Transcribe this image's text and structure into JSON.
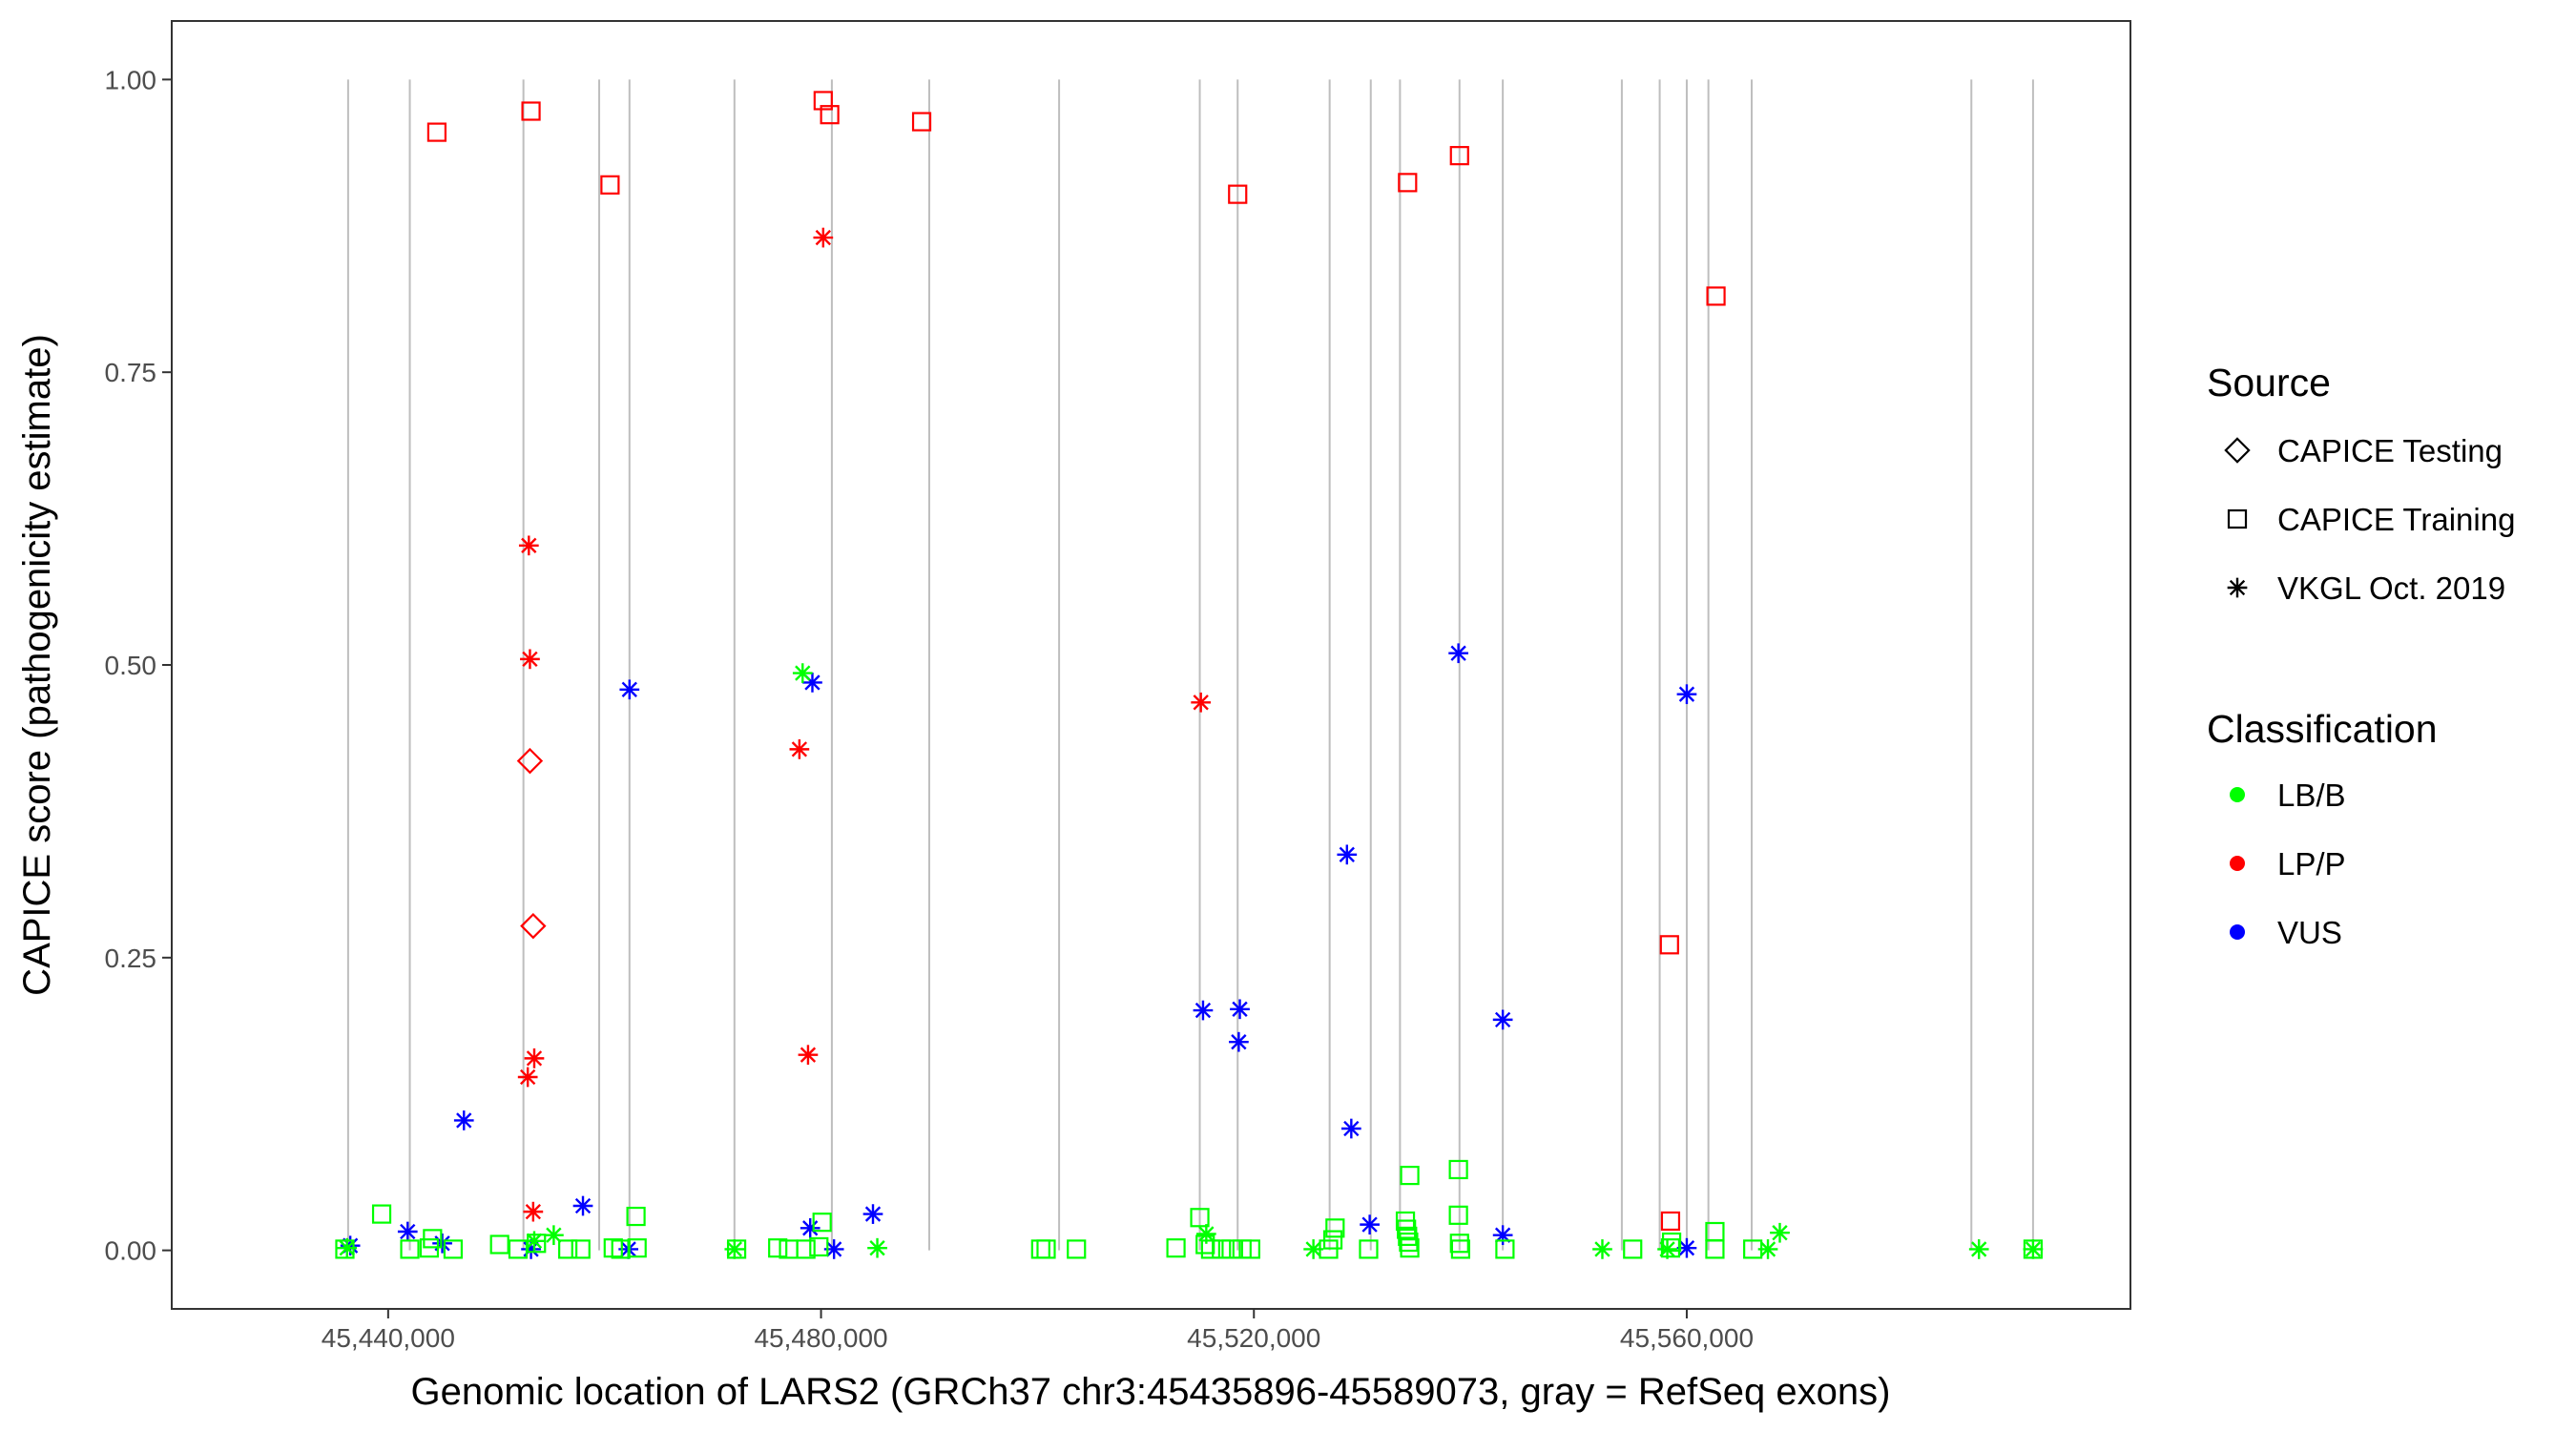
{
  "chart_data": {
    "type": "scatter",
    "xlabel": "Genomic location of LARS2 (GRCh37 chr3:45435896-45589073, gray = RefSeq exons)",
    "ylabel": "CAPICE score (pathogenicity estimate)",
    "xlim": [
      45420000,
      45601000
    ],
    "ylim": [
      -0.05,
      1.05
    ],
    "x_ticks": [
      45440000,
      45480000,
      45520000,
      45560000
    ],
    "x_tick_labels": [
      "45,440,000",
      "45,480,000",
      "45,520,000",
      "45,560,000"
    ],
    "y_ticks": [
      0,
      0.25,
      0.5,
      0.75,
      1
    ],
    "y_tick_labels": [
      "0.00",
      "0.25",
      "0.50",
      "0.75",
      "1.00"
    ],
    "grid": false,
    "legend_position": "right",
    "exons": [
      45436300,
      45442000,
      45452500,
      45459500,
      45462300,
      45472000,
      45481000,
      45490000,
      45502000,
      45515000,
      45518500,
      45527000,
      45530800,
      45533500,
      45539000,
      45543000,
      45554000,
      45557500,
      45560000,
      45562000,
      45566000,
      45586300,
      45592000
    ],
    "legend_source": {
      "title": "Source",
      "items": [
        {
          "label": "CAPICE Testing",
          "shape": "diamond"
        },
        {
          "label": "CAPICE Training",
          "shape": "square"
        },
        {
          "label": "VKGL Oct. 2019",
          "shape": "asterisk"
        }
      ]
    },
    "legend_classification": {
      "title": "Classification",
      "items": [
        {
          "label": "LB/B",
          "color": "#00ff00"
        },
        {
          "label": "LP/P",
          "color": "#ff0000"
        },
        {
          "label": "VUS",
          "color": "#0000ff"
        }
      ]
    },
    "series": [
      {
        "shape": "square",
        "color": "#ff0000",
        "points": [
          [
            45444500,
            0.955
          ],
          [
            45453200,
            0.973
          ],
          [
            45460500,
            0.91
          ],
          [
            45480200,
            0.982
          ],
          [
            45480800,
            0.97
          ],
          [
            45489300,
            0.964
          ],
          [
            45518500,
            0.902
          ],
          [
            45534200,
            0.912
          ],
          [
            45539000,
            0.935
          ],
          [
            45558400,
            0.261
          ],
          [
            45558500,
            0.025
          ],
          [
            45562700,
            0.815
          ]
        ]
      },
      {
        "shape": "asterisk",
        "color": "#ff0000",
        "points": [
          [
            45453000,
            0.602
          ],
          [
            45453100,
            0.505
          ],
          [
            45480200,
            0.865
          ],
          [
            45478000,
            0.428
          ],
          [
            45478800,
            0.167
          ],
          [
            45515100,
            0.468
          ],
          [
            45453500,
            0.164
          ],
          [
            45452900,
            0.148
          ],
          [
            45453400,
            0.033
          ]
        ]
      },
      {
        "shape": "diamond",
        "color": "#ff0000",
        "points": [
          [
            45453100,
            0.418
          ],
          [
            45453400,
            0.277
          ]
        ]
      },
      {
        "shape": "asterisk",
        "color": "#0000ff",
        "points": [
          [
            45436500,
            0.004
          ],
          [
            45441800,
            0.016
          ],
          [
            45445000,
            0.006
          ],
          [
            45447000,
            0.111
          ],
          [
            45453200,
            0.001
          ],
          [
            45458000,
            0.038
          ],
          [
            45462300,
            0.479
          ],
          [
            45462200,
            0.001
          ],
          [
            45479200,
            0.485
          ],
          [
            45479000,
            0.019
          ],
          [
            45481200,
            0.001
          ],
          [
            45484800,
            0.031
          ],
          [
            45515300,
            0.205
          ],
          [
            45518700,
            0.206
          ],
          [
            45518600,
            0.178
          ],
          [
            45528600,
            0.338
          ],
          [
            45529000,
            0.104
          ],
          [
            45530700,
            0.022
          ],
          [
            45538900,
            0.51
          ],
          [
            45543000,
            0.197
          ],
          [
            45543000,
            0.013
          ],
          [
            45560000,
            0.475
          ],
          [
            45560000,
            0.002
          ]
        ]
      },
      {
        "shape": "asterisk",
        "color": "#00ff00",
        "points": [
          [
            45478300,
            0.493
          ],
          [
            45455300,
            0.013
          ],
          [
            45453500,
            0.008
          ],
          [
            45472000,
            0.001
          ],
          [
            45485200,
            0.002
          ],
          [
            45515600,
            0.014
          ],
          [
            45525500,
            0.001
          ],
          [
            45552200,
            0.001
          ],
          [
            45558200,
            0.001
          ],
          [
            45567500,
            0.001
          ],
          [
            45568600,
            0.015
          ],
          [
            45587000,
            0.001
          ],
          [
            45592000,
            0.001
          ],
          [
            45436200,
            0.002
          ]
        ]
      },
      {
        "shape": "square",
        "color": "#00ff00",
        "points": [
          [
            45436000,
            0.001
          ],
          [
            45439400,
            0.031
          ],
          [
            45442000,
            0.001
          ],
          [
            45443800,
            0.002
          ],
          [
            45444100,
            0.01
          ],
          [
            45446000,
            0.001
          ],
          [
            45450300,
            0.005
          ],
          [
            45452000,
            0.001
          ],
          [
            45453700,
            0.006
          ],
          [
            45456600,
            0.001
          ],
          [
            45457800,
            0.001
          ],
          [
            45460800,
            0.002
          ],
          [
            45461500,
            0.001
          ],
          [
            45462900,
            0.029
          ],
          [
            45463000,
            0.002
          ],
          [
            45472200,
            0.001
          ],
          [
            45476000,
            0.002
          ],
          [
            45477000,
            0.001
          ],
          [
            45478600,
            0.001
          ],
          [
            45479800,
            0.003
          ],
          [
            45480100,
            0.024
          ],
          [
            45500300,
            0.001
          ],
          [
            45500800,
            0.001
          ],
          [
            45503600,
            0.001
          ],
          [
            45512800,
            0.002
          ],
          [
            45515000,
            0.028
          ],
          [
            45515500,
            0.005
          ],
          [
            45516000,
            0.001
          ],
          [
            45517000,
            0.001
          ],
          [
            45517900,
            0.001
          ],
          [
            45518900,
            0.001
          ],
          [
            45519700,
            0.001
          ],
          [
            45526900,
            0.001
          ],
          [
            45527300,
            0.009
          ],
          [
            45527500,
            0.019
          ],
          [
            45530600,
            0.001
          ],
          [
            45534000,
            0.025
          ],
          [
            45534100,
            0.018
          ],
          [
            45534200,
            0.012
          ],
          [
            45534300,
            0.007
          ],
          [
            45534400,
            0.002
          ],
          [
            45534400,
            0.064
          ],
          [
            45538900,
            0.069
          ],
          [
            45538900,
            0.03
          ],
          [
            45539000,
            0.006
          ],
          [
            45539100,
            0.001
          ],
          [
            45543200,
            0.001
          ],
          [
            45555000,
            0.001
          ],
          [
            45558500,
            0.002
          ],
          [
            45558600,
            0.007
          ],
          [
            45562600,
            0.016
          ],
          [
            45562600,
            0.001
          ],
          [
            45566100,
            0.001
          ],
          [
            45592000,
            0.001
          ]
        ]
      }
    ]
  }
}
